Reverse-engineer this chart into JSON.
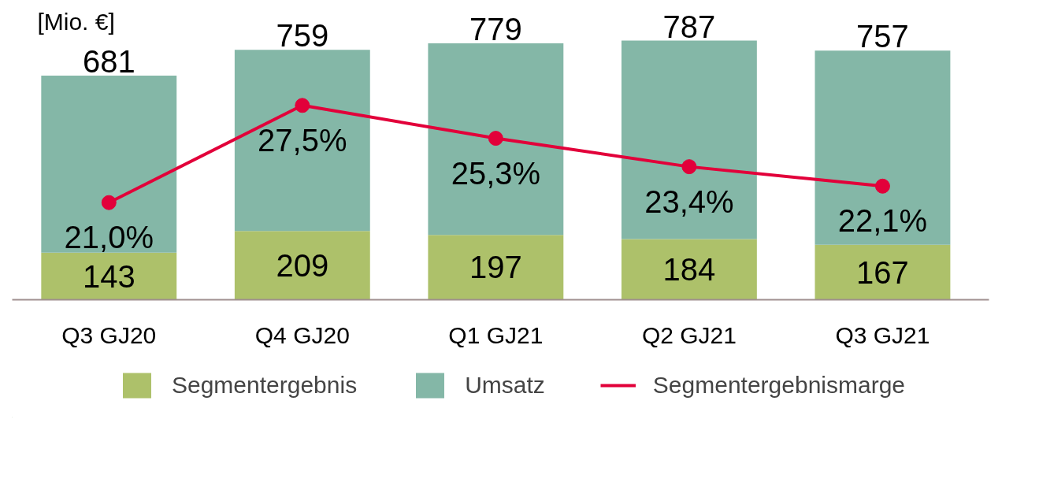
{
  "chart_data": {
    "type": "bar",
    "stacked": true,
    "ylabel": "[Mio. €]",
    "categories": [
      "Q3 GJ20",
      "Q4 GJ20",
      "Q1 GJ21",
      "Q2 GJ21",
      "Q3 GJ21"
    ],
    "series": [
      {
        "name": "Segmentergebnis",
        "color": "#adc16a",
        "values": [
          143,
          209,
          197,
          184,
          167
        ],
        "value_labels": [
          "143",
          "209",
          "197",
          "184",
          "167"
        ]
      },
      {
        "name": "Umsatz",
        "color": "#84b7a7",
        "values": [
          538,
          550,
          582,
          603,
          590
        ]
      },
      {
        "name": "Segmentergebnismarge",
        "type": "line",
        "axis": "y2",
        "color": "#e2003a",
        "marker": "circle",
        "values": [
          21.0,
          27.5,
          25.3,
          23.4,
          22.1
        ],
        "value_labels": [
          "21,0%",
          "27,5%",
          "25,3%",
          "23,4%",
          "22,1%"
        ]
      }
    ],
    "totals": [
      "681",
      "759",
      "779",
      "787",
      "757"
    ],
    "tick_labels": "x",
    "legend": "bottom"
  }
}
